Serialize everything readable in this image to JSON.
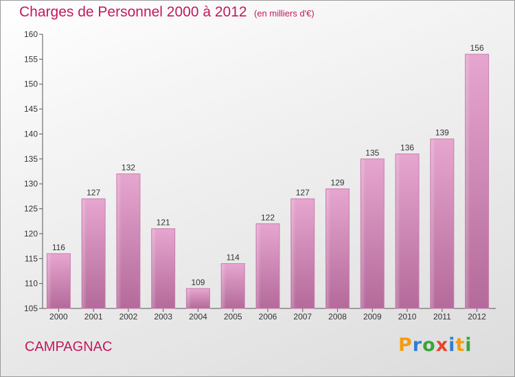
{
  "title": "Charges de Personnel 2000 à 2012",
  "subtitle": "(en milliers d'€)",
  "commune": "CAMPAGNAC",
  "logo": {
    "letters": [
      "P",
      "r",
      "o",
      "x",
      "i",
      "t",
      "i"
    ],
    "colors": [
      "#f39c12",
      "#2f7fd1",
      "#3aa53a",
      "#e8452c",
      "#2f7fd1",
      "#f39c12",
      "#3aa53a"
    ]
  },
  "colors": {
    "bar": "#d98fbc",
    "bar_dark": "#b86a9c",
    "text": "#c2185b"
  },
  "chart_data": {
    "type": "bar",
    "title": "Charges de Personnel 2000 à 2012",
    "subtitle": "(en milliers d'€)",
    "categories": [
      "2000",
      "2001",
      "2002",
      "2003",
      "2004",
      "2005",
      "2006",
      "2007",
      "2008",
      "2009",
      "2010",
      "2011",
      "2012"
    ],
    "values": [
      116,
      127,
      132,
      121,
      109,
      114,
      122,
      127,
      129,
      135,
      136,
      139,
      156
    ],
    "ylim": [
      105,
      160
    ],
    "yticks": [
      105,
      110,
      115,
      120,
      125,
      130,
      135,
      140,
      145,
      150,
      155,
      160
    ],
    "xlabel": "",
    "ylabel": "",
    "grid": false,
    "legend": "none"
  }
}
